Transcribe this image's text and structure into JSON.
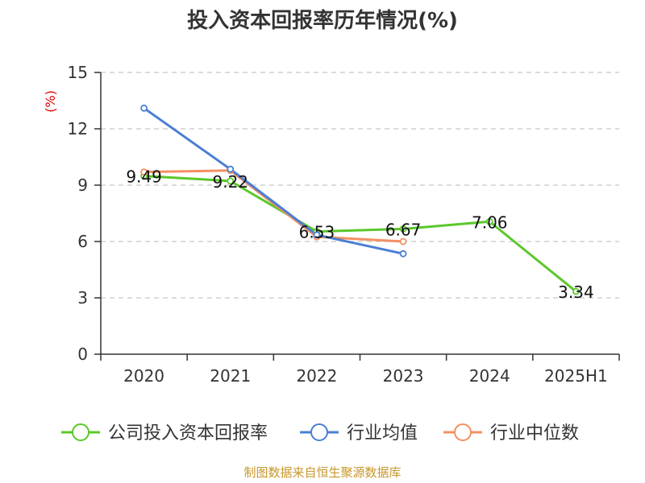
{
  "chart_data": {
    "type": "line",
    "title": "投入资本回报率历年情况(%)",
    "unit": "(%)",
    "categories": [
      "2020",
      "2021",
      "2022",
      "2023",
      "2024",
      "2025H1"
    ],
    "ylim": [
      0,
      15
    ],
    "yticks": [
      0,
      3,
      6,
      9,
      12,
      15
    ],
    "grid": true,
    "legend_position": "bottom",
    "series": [
      {
        "name": "公司投入资本回报率",
        "color": "#5ac82a",
        "values": [
          9.49,
          9.22,
          6.53,
          6.67,
          7.06,
          3.34
        ],
        "labels": [
          "9.49",
          "9.22",
          "6.53",
          "6.67",
          "7.06",
          "3.34"
        ]
      },
      {
        "name": "行业均值",
        "color": "#4a7fd4",
        "values": [
          13.1,
          9.85,
          6.35,
          5.35,
          null,
          null
        ]
      },
      {
        "name": "行业中位数",
        "color": "#f39063",
        "values": [
          9.7,
          9.78,
          6.25,
          6.0,
          null,
          null
        ]
      }
    ]
  },
  "source": "制图数据来自恒生聚源数据库"
}
